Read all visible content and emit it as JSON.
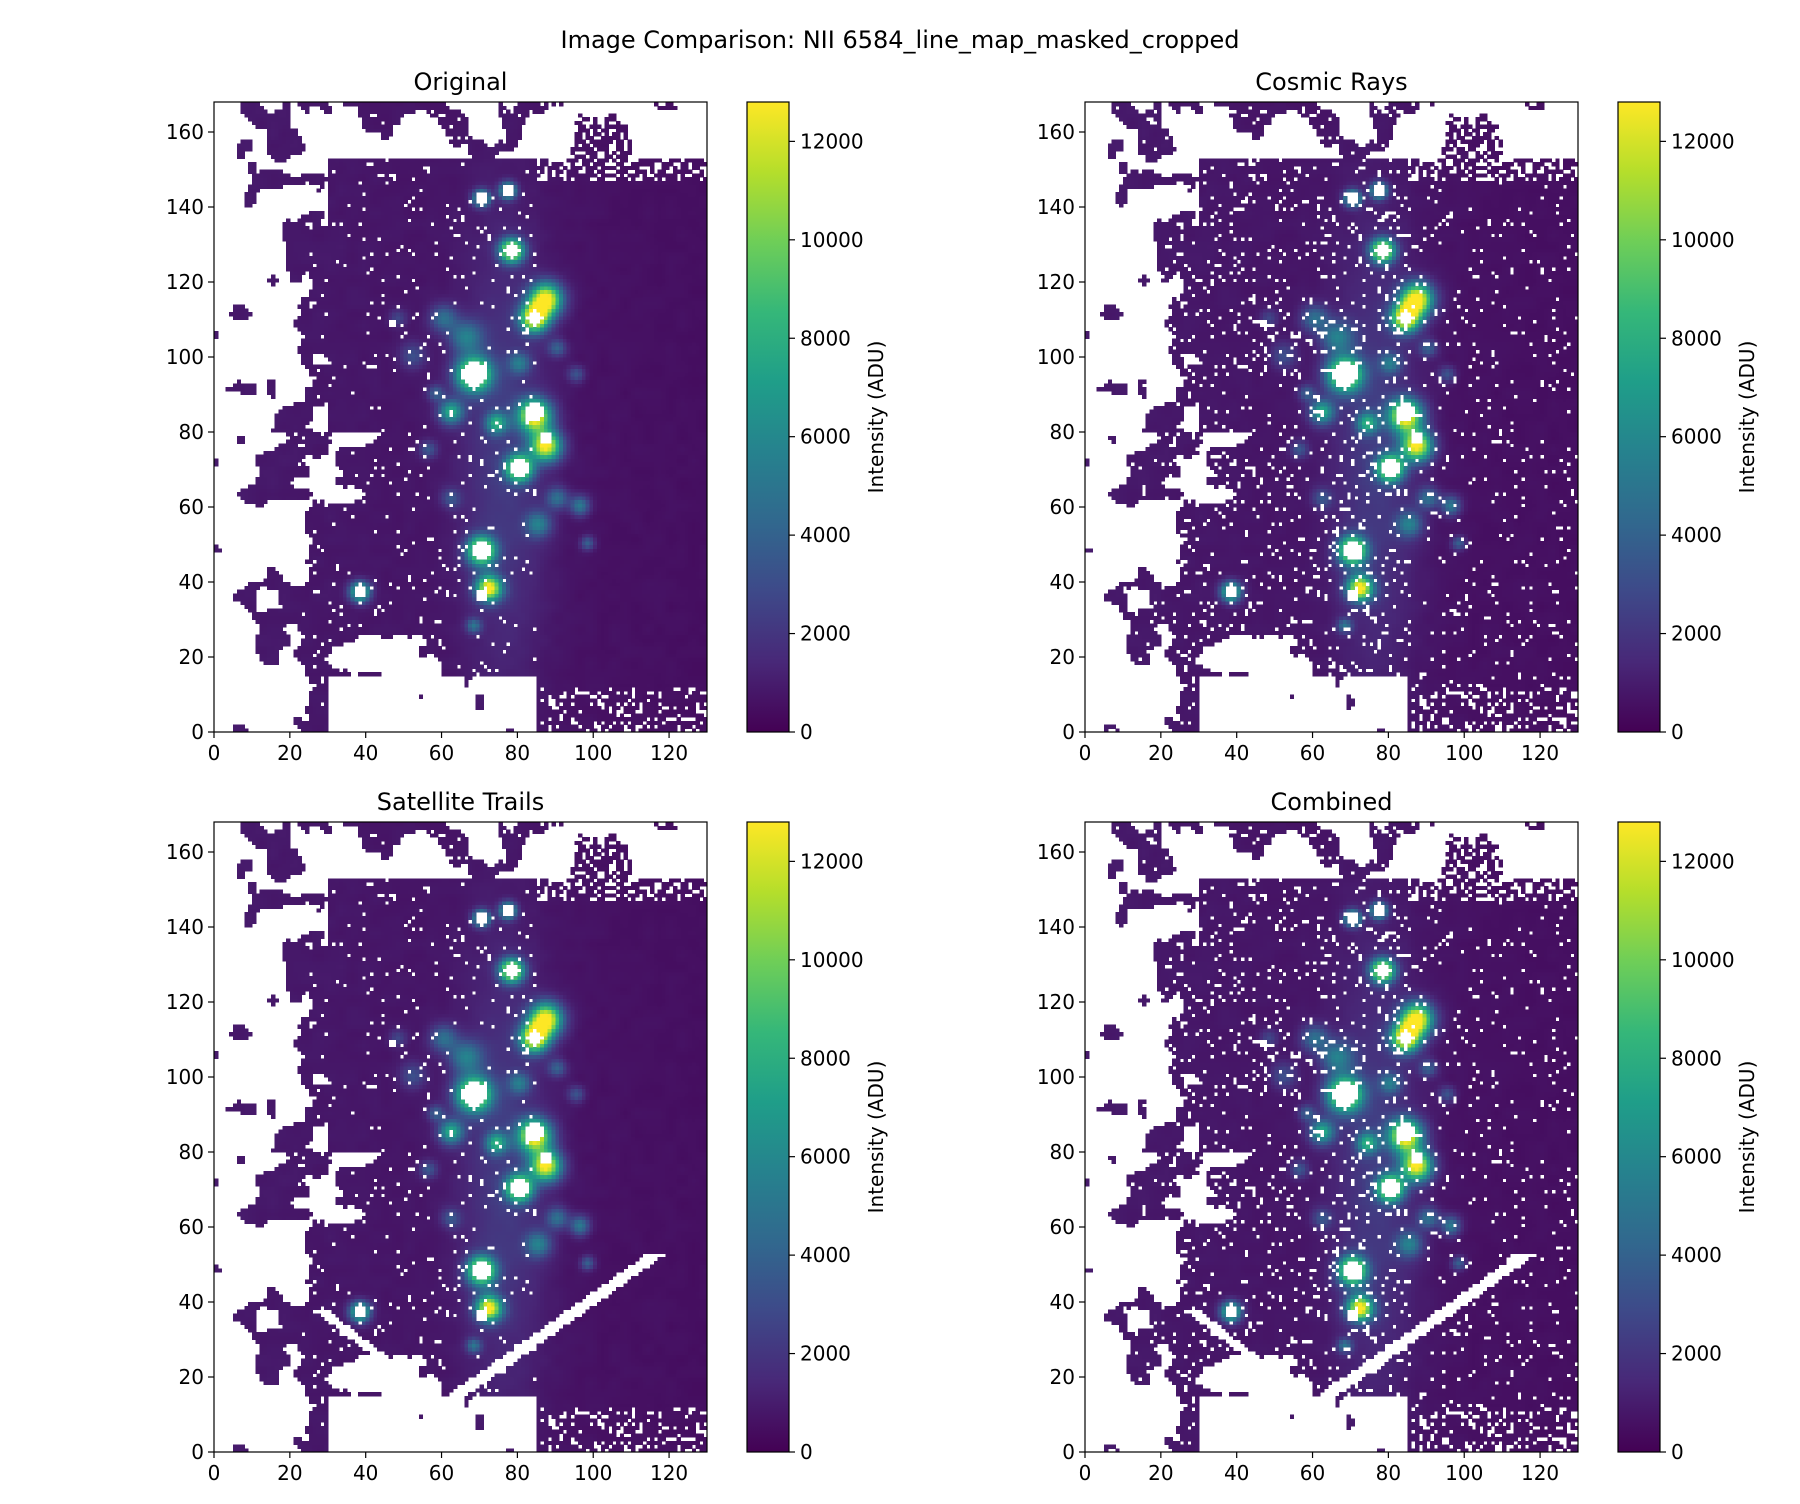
{
  "figure_title": "Image Comparison: NII 6584_line_map_masked_cropped",
  "colormap": [
    "#440154",
    "#482878",
    "#3e4989",
    "#31688e",
    "#26828e",
    "#1f9e89",
    "#35b779",
    "#6ece58",
    "#b5de2b",
    "#fde725"
  ],
  "mask_color": "#ffffff",
  "chart_data": [
    {
      "type": "heatmap",
      "title": "Original",
      "x_ticks": [
        "0",
        "20",
        "40",
        "60",
        "80",
        "100",
        "120"
      ],
      "y_ticks": [
        "0",
        "20",
        "40",
        "60",
        "80",
        "100",
        "120",
        "140",
        "160"
      ],
      "xlim": [
        0,
        130
      ],
      "ylim": [
        0,
        168
      ],
      "colorbar": {
        "label": "Intensity (ADU)",
        "ticks": [
          "0",
          "2000",
          "4000",
          "6000",
          "8000",
          "10000",
          "12000"
        ],
        "range": [
          0,
          12800
        ]
      },
      "cosmic_rays": false,
      "satellite_trails": false
    },
    {
      "type": "heatmap",
      "title": "Cosmic Rays",
      "x_ticks": [
        "0",
        "20",
        "40",
        "60",
        "80",
        "100",
        "120"
      ],
      "y_ticks": [
        "0",
        "20",
        "40",
        "60",
        "80",
        "100",
        "120",
        "140",
        "160"
      ],
      "xlim": [
        0,
        130
      ],
      "ylim": [
        0,
        168
      ],
      "colorbar": {
        "label": "Intensity (ADU)",
        "ticks": [
          "0",
          "2000",
          "4000",
          "6000",
          "8000",
          "10000",
          "12000"
        ],
        "range": [
          0,
          12800
        ]
      },
      "cosmic_rays": true,
      "satellite_trails": false
    },
    {
      "type": "heatmap",
      "title": "Satellite Trails",
      "x_ticks": [
        "0",
        "20",
        "40",
        "60",
        "80",
        "100",
        "120"
      ],
      "y_ticks": [
        "0",
        "20",
        "40",
        "60",
        "80",
        "100",
        "120",
        "140",
        "160"
      ],
      "xlim": [
        0,
        130
      ],
      "ylim": [
        0,
        168
      ],
      "colorbar": {
        "label": "Intensity (ADU)",
        "ticks": [
          "0",
          "2000",
          "4000",
          "6000",
          "8000",
          "10000",
          "12000"
        ],
        "range": [
          0,
          12800
        ]
      },
      "cosmic_rays": false,
      "satellite_trails": true
    },
    {
      "type": "heatmap",
      "title": "Combined",
      "x_ticks": [
        "0",
        "20",
        "40",
        "60",
        "80",
        "100",
        "120"
      ],
      "y_ticks": [
        "0",
        "20",
        "40",
        "60",
        "80",
        "100",
        "120",
        "140",
        "160"
      ],
      "xlim": [
        0,
        130
      ],
      "ylim": [
        0,
        168
      ],
      "colorbar": {
        "label": "Intensity (ADU)",
        "ticks": [
          "0",
          "2000",
          "4000",
          "6000",
          "8000",
          "10000",
          "12000"
        ],
        "range": [
          0,
          12800
        ]
      },
      "cosmic_rays": true,
      "satellite_trails": true
    }
  ]
}
